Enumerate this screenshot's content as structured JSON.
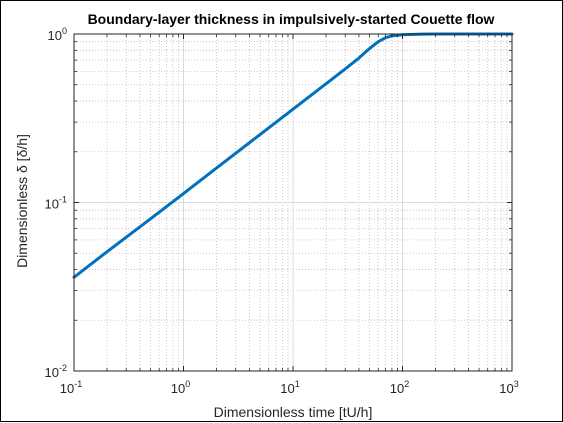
{
  "chart_data": {
    "type": "line",
    "title": "Boundary-layer thickness in impulsively-started Couette flow",
    "xlabel": "Dimensionless time [tU/h]",
    "ylabel": "Dimensionless δ [δ/h]",
    "xscale": "log",
    "yscale": "log",
    "xlim": [
      0.1,
      1000
    ],
    "ylim": [
      0.01,
      1
    ],
    "grid": true,
    "minor_grid": true,
    "line_color": "#0072BD",
    "x_ticks": [
      {
        "base": "10",
        "exp": "-1"
      },
      {
        "base": "10",
        "exp": "0"
      },
      {
        "base": "10",
        "exp": "1"
      },
      {
        "base": "10",
        "exp": "2"
      },
      {
        "base": "10",
        "exp": "3"
      }
    ],
    "y_ticks": [
      {
        "base": "10",
        "exp": "-2"
      },
      {
        "base": "10",
        "exp": "-1"
      },
      {
        "base": "10",
        "exp": "0"
      }
    ],
    "series": [
      {
        "x": [
          0.1,
          0.2,
          0.5,
          1,
          2,
          5,
          10,
          20,
          30,
          40,
          50,
          60,
          70,
          80,
          100,
          150,
          200,
          500,
          1000
        ],
        "y": [
          0.036,
          0.051,
          0.08,
          0.113,
          0.16,
          0.253,
          0.358,
          0.506,
          0.62,
          0.72,
          0.82,
          0.9,
          0.95,
          0.975,
          0.99,
          0.998,
          1.0,
          1.0,
          1.0
        ]
      }
    ]
  }
}
